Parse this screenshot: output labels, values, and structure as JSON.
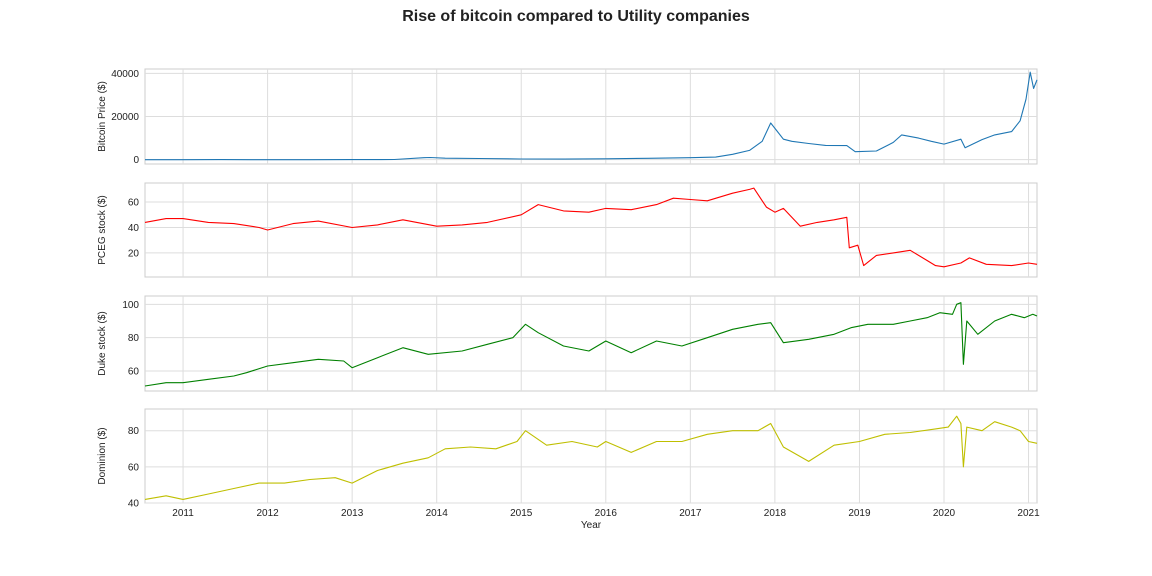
{
  "figure_title": "Rise of bitcoin compared to Utility companies",
  "chart_data": [
    {
      "type": "line",
      "ylabel": "Bitcoin Price ($)",
      "xlabel": "",
      "color": "#1f77b4",
      "ylim": [
        -2000,
        42000
      ],
      "yticks": [
        0,
        20000,
        40000
      ],
      "ytick_labels": [
        "0",
        "20000",
        "40000"
      ],
      "xlim": [
        2010.55,
        2021.1
      ],
      "grid": true,
      "series": [
        {
          "x": [
            2010.55,
            2011.0,
            2011.45,
            2011.8,
            2012.5,
            2013.0,
            2013.5,
            2013.85,
            2013.92,
            2014.1,
            2014.5,
            2015.0,
            2015.5,
            2016.0,
            2016.5,
            2017.0,
            2017.3,
            2017.5,
            2017.7,
            2017.85,
            2017.95,
            2018.02,
            2018.1,
            2018.2,
            2018.4,
            2018.6,
            2018.85,
            2018.95,
            2019.2,
            2019.4,
            2019.5,
            2019.7,
            2019.85,
            2020.0,
            2020.2,
            2020.25,
            2020.45,
            2020.6,
            2020.8,
            2020.9,
            2020.97,
            2021.02,
            2021.06,
            2021.1
          ],
          "values": [
            0,
            1,
            15,
            5,
            8,
            15,
            100,
            900,
            1000,
            700,
            550,
            300,
            250,
            430,
            650,
            900,
            1200,
            2500,
            4300,
            8500,
            17000,
            13500,
            9500,
            8500,
            7500,
            6600,
            6500,
            3700,
            4000,
            8000,
            11500,
            10000,
            8500,
            7200,
            9500,
            5500,
            9300,
            11500,
            13000,
            18000,
            28000,
            40500,
            33000,
            37000
          ]
        }
      ]
    },
    {
      "type": "line",
      "ylabel": "PCEG stock ($)",
      "xlabel": "",
      "color": "#ff0000",
      "ylim": [
        1,
        75
      ],
      "yticks": [
        20,
        40,
        60
      ],
      "ytick_labels": [
        "20",
        "40",
        "60"
      ],
      "xlim": [
        2010.55,
        2021.1
      ],
      "grid": true,
      "series": [
        {
          "x": [
            2010.55,
            2010.8,
            2011.0,
            2011.3,
            2011.6,
            2011.9,
            2012.0,
            2012.3,
            2012.6,
            2013.0,
            2013.3,
            2013.6,
            2014.0,
            2014.3,
            2014.6,
            2015.0,
            2015.2,
            2015.5,
            2015.8,
            2016.0,
            2016.3,
            2016.6,
            2016.8,
            2017.0,
            2017.2,
            2017.5,
            2017.7,
            2017.75,
            2017.9,
            2018.0,
            2018.1,
            2018.3,
            2018.5,
            2018.7,
            2018.85,
            2018.88,
            2018.98,
            2019.05,
            2019.2,
            2019.4,
            2019.6,
            2019.8,
            2019.9,
            2020.0,
            2020.2,
            2020.3,
            2020.5,
            2020.8,
            2021.0,
            2021.1
          ],
          "values": [
            44,
            47,
            47,
            44,
            43,
            40,
            38,
            43,
            45,
            40,
            42,
            46,
            41,
            42,
            44,
            50,
            58,
            53,
            52,
            55,
            54,
            58,
            63,
            62,
            61,
            67,
            70,
            71,
            56,
            52,
            55,
            41,
            44,
            46,
            48,
            24,
            26,
            10,
            18,
            20,
            22,
            14,
            10,
            9,
            12,
            16,
            11,
            10,
            12,
            11
          ]
        }
      ]
    },
    {
      "type": "line",
      "ylabel": "Duke stock ($)",
      "xlabel": "",
      "color": "#008000",
      "ylim": [
        48,
        105
      ],
      "yticks": [
        60,
        80,
        100
      ],
      "ytick_labels": [
        "60",
        "80",
        "100"
      ],
      "xlim": [
        2010.55,
        2021.1
      ],
      "grid": true,
      "series": [
        {
          "x": [
            2010.55,
            2010.8,
            2011.0,
            2011.3,
            2011.6,
            2011.75,
            2012.0,
            2012.3,
            2012.6,
            2012.9,
            2013.0,
            2013.3,
            2013.6,
            2013.9,
            2014.3,
            2014.6,
            2014.9,
            2015.05,
            2015.2,
            2015.5,
            2015.8,
            2016.0,
            2016.3,
            2016.6,
            2016.9,
            2017.2,
            2017.5,
            2017.8,
            2017.95,
            2018.1,
            2018.4,
            2018.7,
            2018.9,
            2019.1,
            2019.4,
            2019.6,
            2019.8,
            2019.95,
            2020.1,
            2020.15,
            2020.2,
            2020.23,
            2020.27,
            2020.4,
            2020.6,
            2020.8,
            2020.95,
            2021.05,
            2021.1
          ],
          "values": [
            51,
            53,
            53,
            55,
            57,
            59,
            63,
            65,
            67,
            66,
            62,
            68,
            74,
            70,
            72,
            76,
            80,
            88,
            83,
            75,
            72,
            78,
            71,
            78,
            75,
            80,
            85,
            88,
            89,
            77,
            79,
            82,
            86,
            88,
            88,
            90,
            92,
            95,
            94,
            100,
            101,
            64,
            90,
            82,
            90,
            94,
            92,
            94,
            93
          ]
        }
      ]
    },
    {
      "type": "line",
      "ylabel": "Dominion ($)",
      "xlabel": "Year",
      "color": "#bfbf00",
      "ylim": [
        40,
        92
      ],
      "yticks": [
        40,
        60,
        80
      ],
      "ytick_labels": [
        "40",
        "60",
        "80"
      ],
      "xlim": [
        2010.55,
        2021.1
      ],
      "xticks": [
        2011,
        2012,
        2013,
        2014,
        2015,
        2016,
        2017,
        2018,
        2019,
        2020,
        2021
      ],
      "xtick_labels": [
        "2011",
        "2012",
        "2013",
        "2014",
        "2015",
        "2016",
        "2017",
        "2018",
        "2019",
        "2020",
        "2021"
      ],
      "grid": true,
      "series": [
        {
          "x": [
            2010.55,
            2010.8,
            2011.0,
            2011.3,
            2011.6,
            2011.9,
            2012.2,
            2012.5,
            2012.8,
            2013.0,
            2013.3,
            2013.6,
            2013.9,
            2014.1,
            2014.4,
            2014.7,
            2014.95,
            2015.05,
            2015.3,
            2015.6,
            2015.9,
            2016.0,
            2016.3,
            2016.6,
            2016.9,
            2017.2,
            2017.5,
            2017.8,
            2017.95,
            2018.1,
            2018.4,
            2018.7,
            2019.0,
            2019.3,
            2019.6,
            2019.9,
            2020.05,
            2020.15,
            2020.2,
            2020.23,
            2020.27,
            2020.45,
            2020.6,
            2020.8,
            2020.9,
            2021.0,
            2021.1
          ],
          "values": [
            42,
            44,
            42,
            45,
            48,
            51,
            51,
            53,
            54,
            51,
            58,
            62,
            65,
            70,
            71,
            70,
            74,
            80,
            72,
            74,
            71,
            74,
            68,
            74,
            74,
            78,
            80,
            80,
            84,
            71,
            63,
            72,
            74,
            78,
            79,
            81,
            82,
            88,
            84,
            60,
            82,
            80,
            85,
            82,
            80,
            74,
            73
          ]
        }
      ]
    }
  ]
}
